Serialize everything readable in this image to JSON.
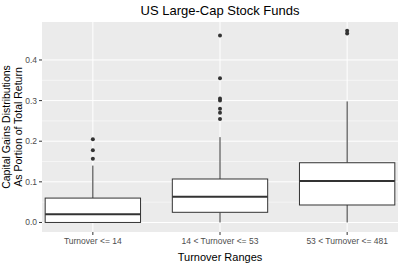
{
  "chart_data": {
    "type": "box",
    "title": "US Large-Cap Stock Funds",
    "x_label": "Turnover Ranges",
    "y_label": "Capital Gains Distributions\nAs Portion of Total Return",
    "categories": [
      "Turnover <= 14",
      "14 < Turnover <= 53",
      "53 < Turnover <= 481"
    ],
    "boxes": [
      {
        "low": 0,
        "q1": 0,
        "median": 0.02,
        "q3": 0.06,
        "high": 0.14,
        "outliers": [
          0.157,
          0.178,
          0.205
        ]
      },
      {
        "low": 0,
        "q1": 0.025,
        "median": 0.063,
        "q3": 0.107,
        "high": 0.21,
        "outliers": [
          0.255,
          0.27,
          0.28,
          0.3,
          0.305,
          0.355,
          0.46
        ]
      },
      {
        "low": 0,
        "q1": 0.043,
        "median": 0.102,
        "q3": 0.147,
        "high": 0.298,
        "outliers": [
          0.465,
          0.472
        ]
      }
    ],
    "color": "#333333",
    "ylim": [
      -0.0235,
      0.4935
    ],
    "yticks": [
      {
        "value": 0,
        "label": "0.0"
      },
      0.1,
      0.2,
      0.3,
      0.4
    ],
    "grid": true
  }
}
